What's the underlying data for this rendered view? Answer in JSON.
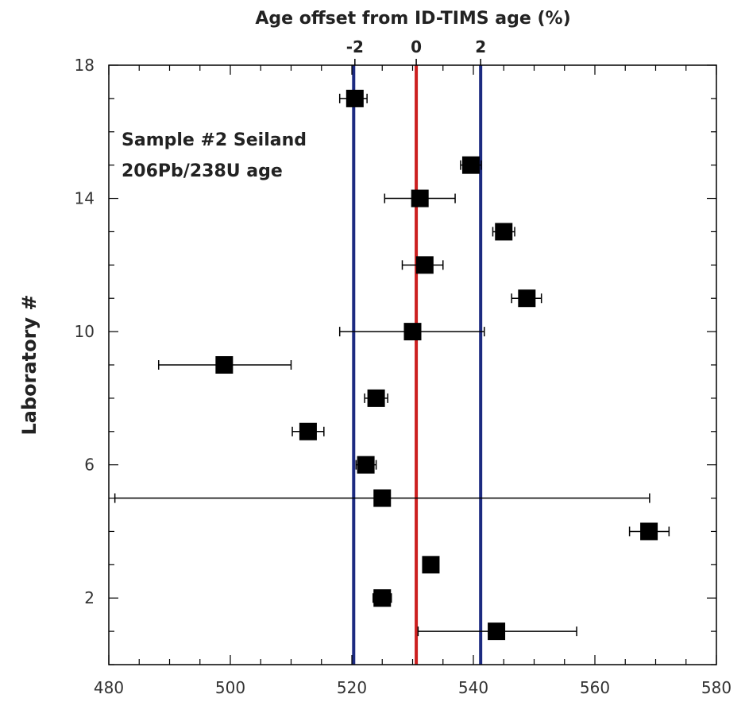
{
  "chart_data": {
    "type": "scatter",
    "title": "Age offset from ID-TIMS age (%)",
    "ylabel": "Laboratory #",
    "xlabel": "",
    "xlim": [
      480,
      580
    ],
    "ylim": [
      0,
      18
    ],
    "x_ticks": [
      480,
      500,
      520,
      540,
      560,
      580
    ],
    "y_ticks": [
      2,
      6,
      10,
      14,
      18
    ],
    "top_ticks": [
      {
        "label": "-2",
        "value": 520.5
      },
      {
        "label": "0",
        "value": 530.6
      },
      {
        "label": "2",
        "value": 541.2
      }
    ],
    "annotation": [
      "Sample #2 Seiland",
      "206Pb/238U age"
    ],
    "reference_lines": [
      {
        "x": 530.6,
        "color": "#cc1f1f"
      },
      {
        "x": 520.3,
        "color": "#1c2a80"
      },
      {
        "x": 541.2,
        "color": "#1c2a80"
      }
    ],
    "marker_color": "#000000",
    "grid": false,
    "points": [
      {
        "lab": 1,
        "age": 543.8,
        "err_low": 530.9,
        "err_high": 557.0
      },
      {
        "lab": 2,
        "age": 525.0,
        "err_low": 523.5,
        "err_high": 526.5
      },
      {
        "lab": 3,
        "age": 533.0,
        "err_low": 532.2,
        "err_high": 533.8
      },
      {
        "lab": 4,
        "age": 568.9,
        "err_low": 565.7,
        "err_high": 572.2
      },
      {
        "lab": 5,
        "age": 525.0,
        "err_low": 481.0,
        "err_high": 569.0
      },
      {
        "lab": 6,
        "age": 522.3,
        "err_low": 520.7,
        "err_high": 524.0
      },
      {
        "lab": 7,
        "age": 512.8,
        "err_low": 510.2,
        "err_high": 515.4
      },
      {
        "lab": 8,
        "age": 524.0,
        "err_low": 522.1,
        "err_high": 525.9
      },
      {
        "lab": 9,
        "age": 499.0,
        "err_low": 488.2,
        "err_high": 510.0
      },
      {
        "lab": 10,
        "age": 530.0,
        "err_low": 518.0,
        "err_high": 541.8
      },
      {
        "lab": 11,
        "age": 548.8,
        "err_low": 546.3,
        "err_high": 551.2
      },
      {
        "lab": 12,
        "age": 532.0,
        "err_low": 528.3,
        "err_high": 535.0
      },
      {
        "lab": 13,
        "age": 545.0,
        "err_low": 543.2,
        "err_high": 546.8
      },
      {
        "lab": 14,
        "age": 531.2,
        "err_low": 525.4,
        "err_high": 537.0
      },
      {
        "lab": 15,
        "age": 539.6,
        "err_low": 537.9,
        "err_high": 541.3
      },
      {
        "lab": 17,
        "age": 520.5,
        "err_low": 518.0,
        "err_high": 522.5
      }
    ]
  }
}
